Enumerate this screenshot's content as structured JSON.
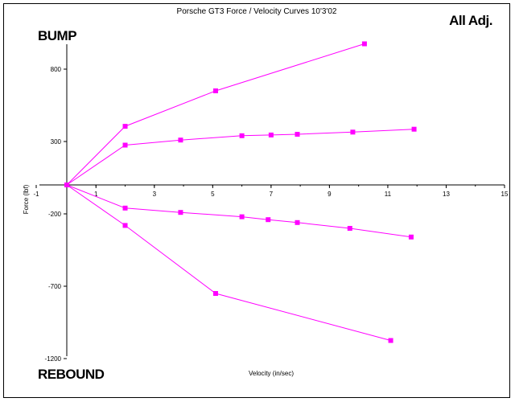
{
  "chart_data": {
    "type": "line",
    "title": "Porsche GT3 Force / Velocity Curves 10'3'02",
    "corner_label": "All Adj.",
    "top_left_label": "BUMP",
    "bottom_left_label": "REBOUND",
    "xlabel": "Velocity (in/sec)",
    "ylabel": "Force (lbf)",
    "xlim": [
      -1,
      15
    ],
    "ylim": [
      -1200,
      1000
    ],
    "x_ticks": [
      -1,
      1,
      3,
      5,
      7,
      9,
      11,
      13,
      15
    ],
    "y_ticks": [
      -1200,
      -700,
      -200,
      300,
      800
    ],
    "color": "#ff00ff",
    "series": [
      {
        "x": [
          0,
          2,
          5.1,
          10.2
        ],
        "y": [
          0,
          405,
          650,
          975
        ]
      },
      {
        "x": [
          0,
          2,
          3.9,
          6,
          7,
          7.9,
          9.8,
          11.9
        ],
        "y": [
          0,
          275,
          310,
          340,
          345,
          350,
          365,
          385
        ]
      },
      {
        "x": [
          0,
          2,
          3.9,
          6,
          6.9,
          7.9,
          9.7,
          11.8
        ],
        "y": [
          0,
          -160,
          -190,
          -220,
          -240,
          -260,
          -300,
          -360
        ]
      },
      {
        "x": [
          0,
          2,
          5.1,
          11.1
        ],
        "y": [
          0,
          -280,
          -750,
          -1075
        ]
      }
    ]
  }
}
